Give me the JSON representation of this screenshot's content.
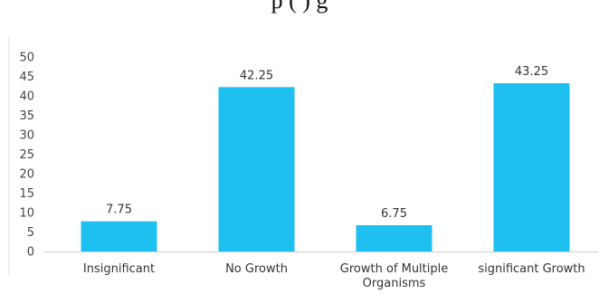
{
  "caption_fragment": "p    (    )                  g",
  "chart_data": {
    "type": "bar",
    "categories": [
      "Insignificant",
      "No Growth",
      "Growth of Multiple Organisms",
      "significant Growth"
    ],
    "category_lines": [
      [
        "Insignificant"
      ],
      [
        "No Growth"
      ],
      [
        "Growth of Multiple",
        "Organisms"
      ],
      [
        "significant Growth"
      ]
    ],
    "values": [
      7.75,
      42.25,
      6.75,
      43.25
    ],
    "value_labels": [
      "7.75",
      "42.25",
      "6.75",
      "43.25"
    ],
    "ylim": [
      0,
      50
    ],
    "yticks": [
      "0",
      "5",
      "10",
      "15",
      "20",
      "25",
      "30",
      "35",
      "40",
      "45",
      "50"
    ],
    "ytick_values": [
      0,
      5,
      10,
      15,
      20,
      25,
      30,
      35,
      40,
      45,
      50
    ],
    "bar_color": "#1EC0F0",
    "grid": false,
    "title": "",
    "xlabel": "",
    "ylabel": ""
  }
}
